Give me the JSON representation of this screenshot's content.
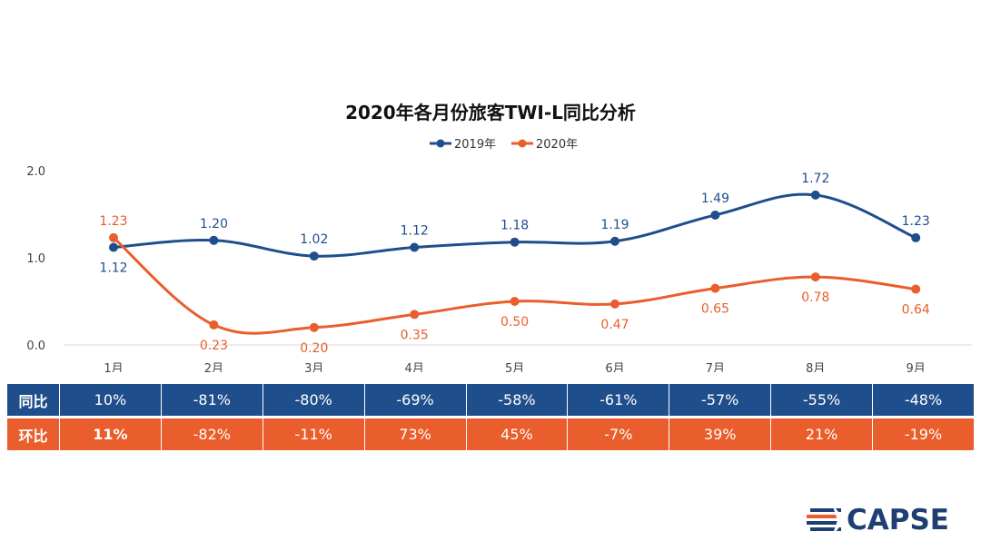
{
  "chart_data": {
    "type": "line",
    "title": "2020年各月份旅客TWI-L同比分析",
    "categories": [
      "1月",
      "2月",
      "3月",
      "4月",
      "5月",
      "6月",
      "7月",
      "8月",
      "9月"
    ],
    "series": [
      {
        "name": "2019年",
        "color": "#1f4e8c",
        "values": [
          1.12,
          1.2,
          1.02,
          1.12,
          1.18,
          1.19,
          1.49,
          1.72,
          1.23
        ],
        "labels": [
          "1.12",
          "1.20",
          "1.02",
          "1.12",
          "1.18",
          "1.19",
          "1.49",
          "1.72",
          "1.23"
        ]
      },
      {
        "name": "2020年",
        "color": "#e95e2c",
        "values": [
          1.23,
          0.23,
          0.2,
          0.35,
          0.5,
          0.47,
          0.65,
          0.78,
          0.64
        ],
        "labels": [
          "1.23",
          "0.23",
          "0.20",
          "0.35",
          "0.50",
          "0.47",
          "0.65",
          "0.78",
          "0.64"
        ]
      }
    ],
    "yticks": [
      "0.0",
      "1.0",
      "2.0"
    ],
    "ylim": [
      0,
      2.0
    ],
    "legend_position": "top-center"
  },
  "table": {
    "rows": [
      {
        "label": "同比",
        "values": [
          "10%",
          "-81%",
          "-80%",
          "-69%",
          "-58%",
          "-61%",
          "-57%",
          "-55%",
          "-48%"
        ]
      },
      {
        "label": "环比",
        "values": [
          "11%",
          "-82%",
          "-11%",
          "73%",
          "45%",
          "-7%",
          "39%",
          "21%",
          "-19%"
        ]
      }
    ]
  },
  "logo": {
    "text": "CAPSE"
  }
}
